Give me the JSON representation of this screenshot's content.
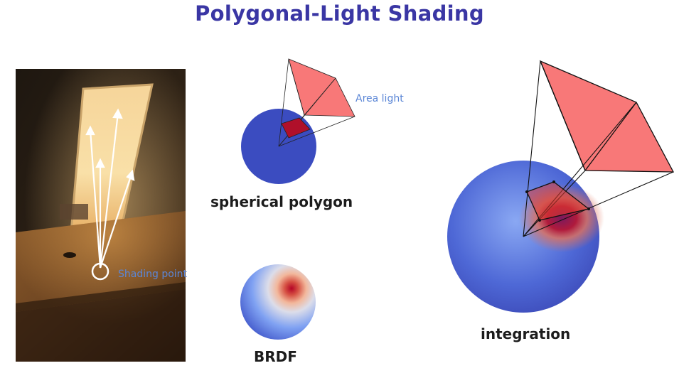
{
  "title": "Polygonal-Light Shading",
  "labels": {
    "spherical_polygon": "spherical polygon",
    "brdf": "BRDF",
    "integration": "integration",
    "area_light": "Area light",
    "shading_point": "Shading point"
  },
  "colors": {
    "title": "#3a36a4",
    "light_polygon": "#f87878",
    "projected_polygon": "#b0102a",
    "sphere_blue": "#3b4cc0",
    "annotation": "#5b86d6"
  }
}
